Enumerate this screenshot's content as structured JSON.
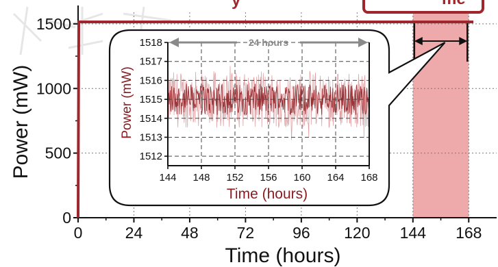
{
  "colors": {
    "main_line": "#a0262d",
    "highlight_band": "#e88e8e",
    "inset_noise": "#c9535a",
    "inset_line": "#8b1a1f",
    "annotation_text": "#8b1a1f",
    "arrow_gray": "#8a8a8a",
    "grid": "#777777"
  },
  "chart_data": [
    {
      "type": "line",
      "xlabel": "Time (hours)",
      "ylabel": "Power (mW)",
      "xlim": [
        0,
        180
      ],
      "ylim": [
        0,
        1600
      ],
      "x_ticks": [
        "0",
        "24",
        "48",
        "72",
        "96",
        "120",
        "144",
        "168"
      ],
      "y_ticks": [
        "0",
        "500",
        "1000",
        "1500"
      ],
      "series": [
        {
          "x": [
            0,
            0.3,
            170
          ],
          "y": [
            0,
            1515,
            1515
          ]
        }
      ],
      "highlight_range_hours": [
        144,
        168
      ],
      "truncated_top_label_fragments": [
        "y",
        "me"
      ],
      "grid": true
    },
    {
      "type": "line",
      "xlabel": "Time (hours)",
      "ylabel": "Power (mW)",
      "xlim": [
        144,
        168
      ],
      "ylim": [
        1511.5,
        1518
      ],
      "x_ticks": [
        "144",
        "148",
        "152",
        "156",
        "160",
        "164",
        "168"
      ],
      "y_ticks": [
        "1512",
        "1513",
        "1514",
        "1515",
        "1516",
        "1517",
        "1518"
      ],
      "series": [
        {
          "x": [
            144,
            168
          ],
          "y": [
            1515,
            1515
          ],
          "band": [
            1513.5,
            1516.5
          ],
          "spikes": [
            1512.8,
            1517.2
          ]
        }
      ],
      "annotation": "24 hours",
      "grid": true
    }
  ]
}
